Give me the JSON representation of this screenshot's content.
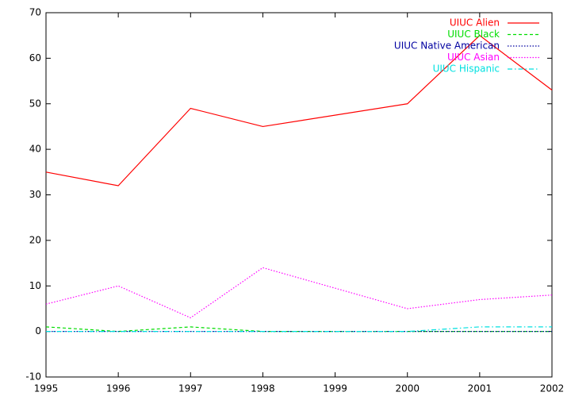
{
  "chart_data": {
    "type": "line",
    "x": [
      1995,
      1996,
      1997,
      1998,
      2000,
      2001,
      2002
    ],
    "series": [
      {
        "name": "UIUC Alien",
        "color": "#ff0000",
        "dash": "solid",
        "values": [
          35,
          32,
          49,
          45,
          50,
          65,
          53
        ]
      },
      {
        "name": "UIUC Black",
        "color": "#00dd00",
        "dash": "dashed",
        "values": [
          1,
          0,
          1,
          0,
          0,
          0,
          0
        ]
      },
      {
        "name": "UIUC Native American",
        "color": "#0000a0",
        "dash": "dotted",
        "values": [
          0,
          0,
          0,
          0,
          0,
          0,
          0
        ]
      },
      {
        "name": "UIUC Asian",
        "color": "#ff00ff",
        "dash": "dotted",
        "values": [
          6,
          10,
          3,
          14,
          5,
          7,
          8
        ]
      },
      {
        "name": "UIUC Hispanic",
        "color": "#00e0e0",
        "dash": "dashdot",
        "values": [
          0,
          0,
          0,
          0,
          0,
          1,
          1
        ]
      }
    ],
    "xlim": [
      1995,
      2002
    ],
    "xticks": [
      1995,
      1996,
      1997,
      1998,
      1999,
      2000,
      2001,
      2002
    ],
    "ylim": [
      -10,
      70
    ],
    "yticks": [
      -10,
      0,
      10,
      20,
      30,
      40,
      50,
      60,
      70
    ],
    "grid": false,
    "legend": "top-right"
  }
}
